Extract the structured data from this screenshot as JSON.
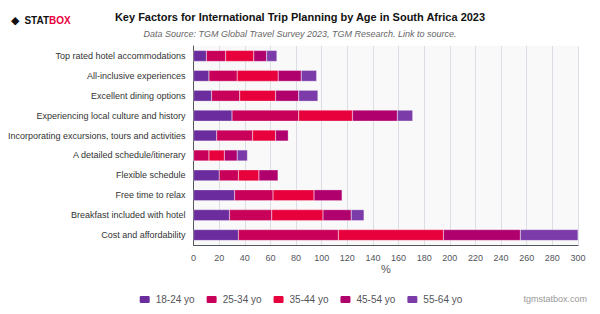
{
  "chart_data": {
    "type": "bar",
    "orientation": "horizontal",
    "stacked": true,
    "title": "Key Factors for International Trip Planning by Age in South Africa 2023",
    "subtitle": "Data Source: TGM Global Travel Survey 2023, TGM Research. Link to source.",
    "xlabel": "%",
    "annotations": [
      "◆",
      "STAT",
      "BOX",
      "tgmstatbox.com"
    ],
    "categories": [
      "Cost and affordability",
      "Breakfast included with hotel",
      "Free time to relax",
      "Flexible schedule",
      "A detailed schedule/itinerary",
      "Incorporating excursions, tours and activities",
      "Experiencing local culture and history",
      "Excellent dining options",
      "All-inclusive experiences",
      "Top rated hotel accommodations"
    ],
    "series": [
      {
        "name": "18-24 yo",
        "color": "#6b2d9e",
        "values": [
          35,
          28,
          32,
          20,
          0,
          18,
          30,
          14,
          12,
          10
        ]
      },
      {
        "name": "25-34 yo",
        "color": "#c8005a",
        "values": [
          78,
          33,
          30,
          15,
          12,
          28,
          52,
          22,
          22,
          15
        ]
      },
      {
        "name": "35-44 yo",
        "color": "#e8003d",
        "values": [
          82,
          40,
          32,
          16,
          12,
          18,
          42,
          28,
          32,
          22
        ]
      },
      {
        "name": "45-54 yo",
        "color": "#b0006e",
        "values": [
          60,
          22,
          22,
          15,
          10,
          10,
          35,
          18,
          18,
          10
        ]
      },
      {
        "name": "55-64 yo",
        "color": "#7b3ba8",
        "values": [
          45,
          10,
          0,
          0,
          8,
          0,
          12,
          15,
          12,
          8
        ]
      }
    ],
    "xlim": [
      0,
      300
    ],
    "xticks": [
      0,
      20,
      40,
      60,
      80,
      100,
      120,
      140,
      160,
      180,
      200,
      220,
      240,
      260,
      280,
      300
    ],
    "grid": true,
    "legend": "bottom"
  }
}
